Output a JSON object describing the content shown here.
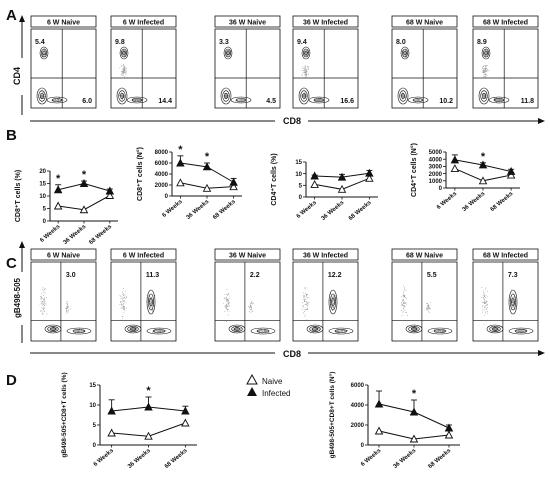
{
  "panels": {
    "A": {
      "letter": "A",
      "y_axis": "CD4",
      "x_axis": "CD8",
      "plots": [
        {
          "title": "6 W Naive",
          "ul": "5.4",
          "lr": "6.0"
        },
        {
          "title": "6 W Infected",
          "ul": "9.8",
          "lr": "14.4"
        },
        {
          "title": "36 W Naive",
          "ul": "3.3",
          "lr": "4.5"
        },
        {
          "title": "36 W Infected",
          "ul": "9.4",
          "lr": "16.6"
        },
        {
          "title": "68 W Naive",
          "ul": "8.0",
          "lr": "10.2"
        },
        {
          "title": "68 W Infected",
          "ul": "8.9",
          "lr": "11.8"
        }
      ]
    },
    "B": {
      "letter": "B"
    },
    "C": {
      "letter": "C",
      "y_axis": "gB498-505",
      "x_axis": "CD8",
      "plots": [
        {
          "title": "6 W Naive",
          "ur": "3.0"
        },
        {
          "title": "6 W Infected",
          "ur": "11.3"
        },
        {
          "title": "36 W Naive",
          "ur": "2.2"
        },
        {
          "title": "36 W Infected",
          "ur": "12.2"
        },
        {
          "title": "68 W Naive",
          "ur": "5.5"
        },
        {
          "title": "68 W Infected",
          "ur": "7.3"
        }
      ]
    },
    "D": {
      "letter": "D",
      "legend": {
        "naive": "Naive",
        "infected": "Infected"
      }
    }
  },
  "chart_data": [
    {
      "type": "line",
      "panel": "B1",
      "ylabel": "CD8⁺T cells (%)",
      "categories": [
        "6 Weeks",
        "36 Weeks",
        "68 Weeks"
      ],
      "ylim": [
        0,
        20
      ],
      "yticks": [
        "0",
        "5",
        "10",
        "15",
        "20"
      ],
      "series": [
        {
          "name": "Naive",
          "values": [
            6.0,
            4.5,
            10.2
          ]
        },
        {
          "name": "Infected",
          "values": [
            12.5,
            15.0,
            12.0
          ],
          "err": [
            2.0,
            1.0,
            0.8
          ]
        }
      ],
      "significance": [
        "*",
        "*",
        ""
      ]
    },
    {
      "type": "line",
      "panel": "B2",
      "ylabel": "CD8⁺T cells (N°)",
      "categories": [
        "6 Weeks",
        "36 Weeks",
        "68 Weeks"
      ],
      "ylim": [
        0,
        8000
      ],
      "yticks": [
        "0",
        "2000",
        "4000",
        "6000",
        "8000"
      ],
      "series": [
        {
          "name": "Naive",
          "values": [
            2400,
            1400,
            1700
          ]
        },
        {
          "name": "Infected",
          "values": [
            6000,
            5300,
            2500
          ],
          "err": [
            1300,
            700,
            700
          ]
        }
      ],
      "significance": [
        "*",
        "*",
        ""
      ]
    },
    {
      "type": "line",
      "panel": "B3",
      "ylabel": "CD4⁺T cells (%)",
      "categories": [
        "6 Weeks",
        "36 Weeks",
        "68 Weeks"
      ],
      "ylim": [
        0,
        15
      ],
      "yticks": [
        "0",
        "5",
        "10",
        "15"
      ],
      "series": [
        {
          "name": "Naive",
          "values": [
            5.4,
            3.3,
            8.0
          ]
        },
        {
          "name": "Infected",
          "values": [
            9.0,
            8.5,
            10.2
          ],
          "err": [
            0.4,
            1.2,
            1.2
          ]
        }
      ],
      "significance": [
        "",
        "",
        ""
      ]
    },
    {
      "type": "line",
      "panel": "B4",
      "ylabel": "CD4⁺T cells (N°)",
      "categories": [
        "6 Weeks",
        "36 Weeks",
        "68 Weeks"
      ],
      "ylim": [
        0,
        5000
      ],
      "yticks": [
        "0",
        "1000",
        "2000",
        "3000",
        "4000",
        "5000"
      ],
      "series": [
        {
          "name": "Naive",
          "values": [
            2700,
            1000,
            1800
          ]
        },
        {
          "name": "Infected",
          "values": [
            3900,
            3200,
            2300
          ],
          "err": [
            700,
            300,
            300
          ]
        }
      ],
      "significance": [
        "",
        "*",
        ""
      ]
    },
    {
      "type": "line",
      "panel": "D1",
      "ylabel": "gB498-505+CD8+T cells (%)",
      "categories": [
        "6 Weeks",
        "36 Weeks",
        "68 Weeks"
      ],
      "ylim": [
        0,
        15
      ],
      "yticks": [
        "0",
        "5",
        "10",
        "15"
      ],
      "series": [
        {
          "name": "Naive",
          "values": [
            3.0,
            2.2,
            5.5
          ]
        },
        {
          "name": "Infected",
          "values": [
            8.5,
            9.5,
            8.5
          ],
          "err": [
            2.8,
            2.5,
            1.2
          ]
        }
      ],
      "significance": [
        "",
        "*",
        ""
      ]
    },
    {
      "type": "line",
      "panel": "D2",
      "ylabel": "gB498-505+CD8+T cells (N°)",
      "categories": [
        "6 Weeks",
        "36 Weeks",
        "68 Weeks"
      ],
      "ylim": [
        0,
        6000
      ],
      "yticks": [
        "0",
        "2000",
        "4000",
        "6000"
      ],
      "series": [
        {
          "name": "Naive",
          "values": [
            1400,
            600,
            1000
          ]
        },
        {
          "name": "Infected",
          "values": [
            4100,
            3300,
            1700
          ],
          "err": [
            1300,
            1200,
            300
          ]
        }
      ],
      "significance": [
        "",
        "*",
        ""
      ]
    }
  ]
}
